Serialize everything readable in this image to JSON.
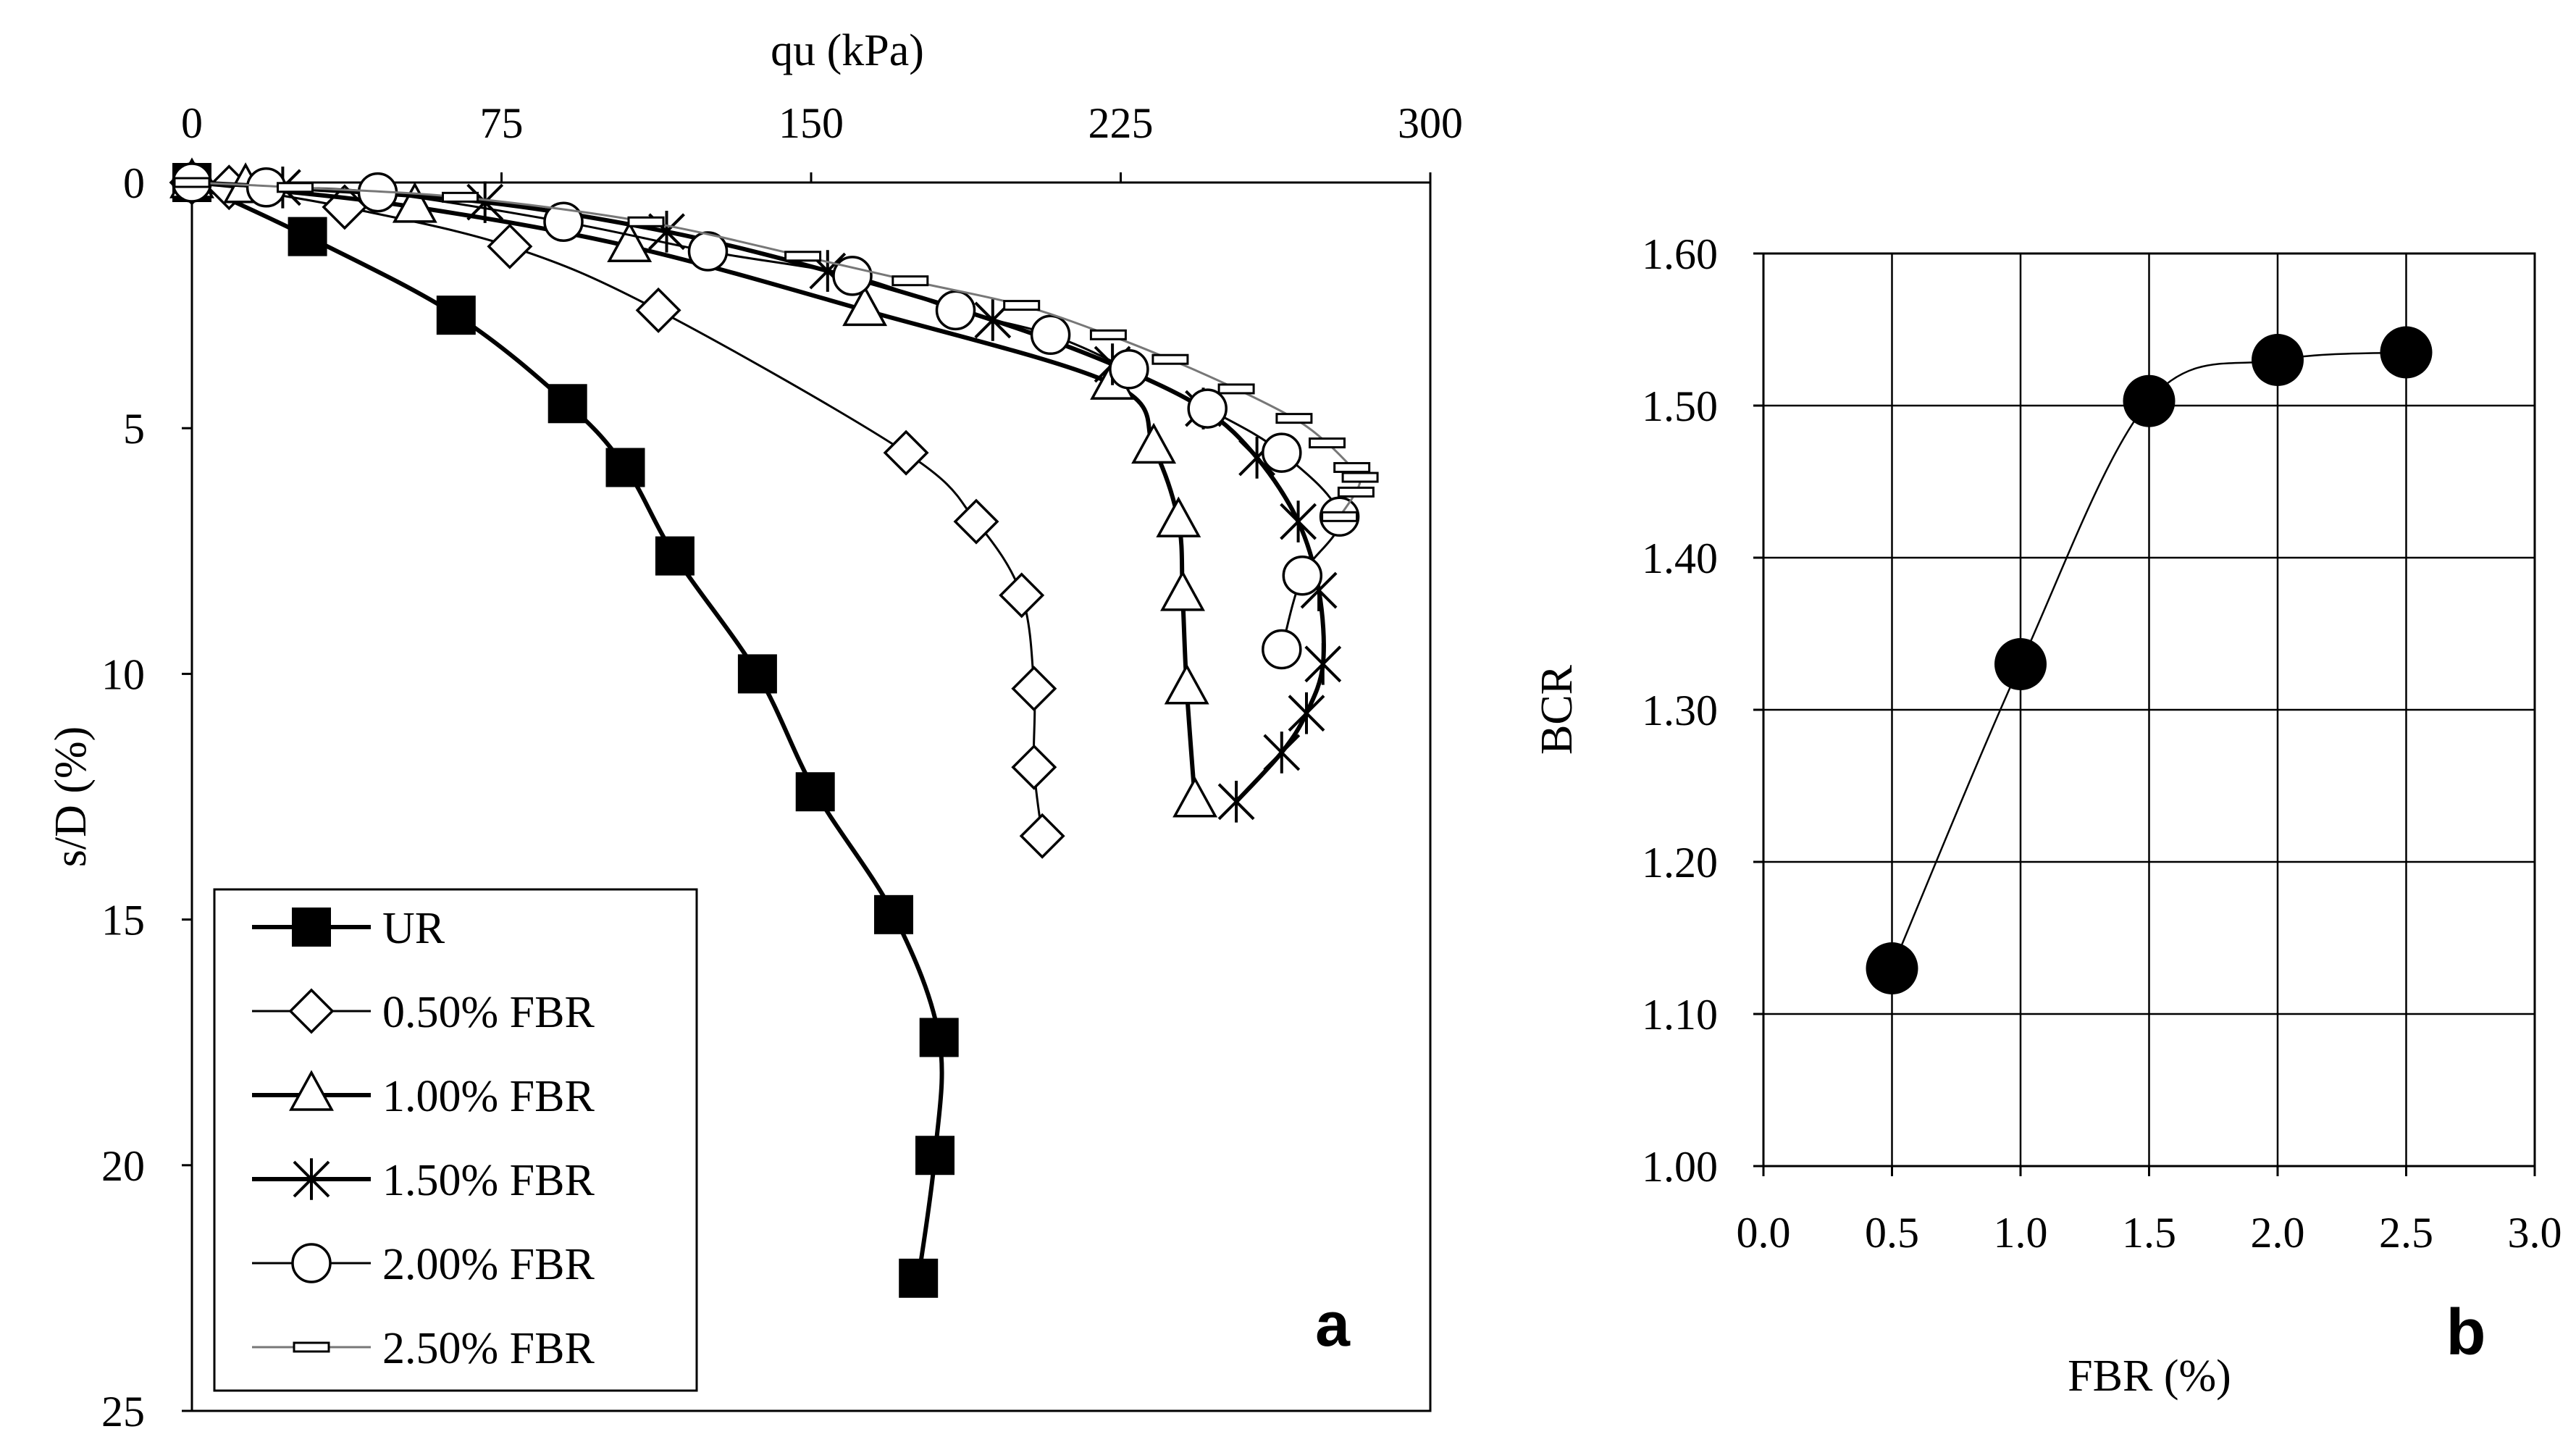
{
  "charts": {
    "a": {
      "panel_label": "a",
      "x_axis_title": "qu (kPa)",
      "y_axis_title": "s/D (%)",
      "x_ticks": [
        "0",
        "75",
        "150",
        "225",
        "300"
      ],
      "y_ticks": [
        "0",
        "5",
        "10",
        "15",
        "20",
        "25"
      ],
      "legend": [
        "UR",
        "0.50% FBR",
        "1.00% FBR",
        "1.50% FBR",
        "2.00% FBR",
        "2.50% FBR"
      ]
    },
    "b": {
      "panel_label": "b",
      "x_axis_title": "FBR (%)",
      "y_axis_title": "BCR",
      "x_ticks": [
        "0.0",
        "0.5",
        "1.0",
        "1.5",
        "2.0",
        "2.5",
        "3.0"
      ],
      "y_ticks": [
        "1.00",
        "1.10",
        "1.20",
        "1.30",
        "1.40",
        "1.50",
        "1.60"
      ]
    }
  },
  "chart_data": [
    {
      "type": "line",
      "title": "",
      "xlabel": "qu (kPa)",
      "ylabel": "s/D (%)",
      "xlim": [
        0,
        300
      ],
      "ylim": [
        0,
        25
      ],
      "y_inverted": true,
      "x_axis_position": "top",
      "grid": false,
      "legend_position": "bottom-left",
      "series": [
        {
          "name": "UR",
          "marker": "filled-square",
          "line": "thick",
          "x": [
            0,
            28,
            64,
            91,
            105,
            117,
            137,
            151,
            170,
            181,
            180,
            176
          ],
          "y": [
            0,
            1.1,
            2.7,
            4.5,
            5.8,
            7.6,
            10.0,
            12.4,
            14.9,
            17.4,
            19.8,
            22.3
          ]
        },
        {
          "name": "0.50% FBR",
          "marker": "open-diamond",
          "line": "thin",
          "x": [
            0,
            9,
            37,
            77,
            113,
            173,
            190,
            201,
            204,
            204,
            206
          ],
          "y": [
            0,
            0.1,
            0.5,
            1.3,
            2.6,
            5.5,
            6.9,
            8.4,
            10.3,
            11.9,
            13.3
          ]
        },
        {
          "name": "1.00% FBR",
          "marker": "open-triangle",
          "line": "thick",
          "x": [
            0,
            13,
            54,
            106,
            163,
            223,
            233,
            239,
            240,
            241,
            243
          ],
          "y": [
            0,
            0.1,
            0.5,
            1.3,
            2.6,
            4.1,
            5.4,
            6.9,
            8.4,
            10.3,
            12.6
          ]
        },
        {
          "name": "1.50% FBR",
          "marker": "star",
          "line": "thick",
          "x": [
            0,
            22,
            71,
            115,
            154,
            194,
            223,
            245,
            258,
            268,
            273,
            274,
            270,
            264,
            253
          ],
          "y": [
            0,
            0.1,
            0.4,
            1.0,
            1.8,
            2.8,
            3.7,
            4.6,
            5.6,
            6.9,
            8.3,
            9.8,
            10.8,
            11.6,
            12.6
          ]
        },
        {
          "name": "2.00% FBR",
          "marker": "open-circle",
          "line": "thin",
          "x": [
            0,
            18,
            45,
            90,
            125,
            160,
            185,
            208,
            227,
            246,
            264,
            278,
            269,
            264
          ],
          "y": [
            0,
            0.1,
            0.2,
            0.8,
            1.4,
            1.9,
            2.6,
            3.1,
            3.8,
            4.6,
            5.5,
            6.8,
            8.0,
            9.5
          ]
        },
        {
          "name": "2.50% FBR",
          "marker": "dash",
          "line": "thin",
          "x": [
            0,
            25,
            65,
            110,
            148,
            174,
            201,
            222,
            237,
            253,
            267,
            275,
            281,
            283,
            282,
            278
          ],
          "y": [
            0,
            0.1,
            0.3,
            0.8,
            1.5,
            2.0,
            2.5,
            3.1,
            3.6,
            4.2,
            4.8,
            5.3,
            5.8,
            6.0,
            6.3,
            6.8
          ]
        }
      ]
    },
    {
      "type": "line",
      "title": "",
      "xlabel": "FBR (%)",
      "ylabel": "BCR",
      "xlim": [
        0,
        3
      ],
      "ylim": [
        1.0,
        1.6
      ],
      "grid": true,
      "series": [
        {
          "name": "BCR",
          "marker": "filled-circle",
          "line": "thin-smooth",
          "x": [
            0.5,
            1.0,
            1.5,
            2.0,
            2.5
          ],
          "y": [
            1.13,
            1.33,
            1.503,
            1.53,
            1.535
          ]
        }
      ]
    }
  ]
}
